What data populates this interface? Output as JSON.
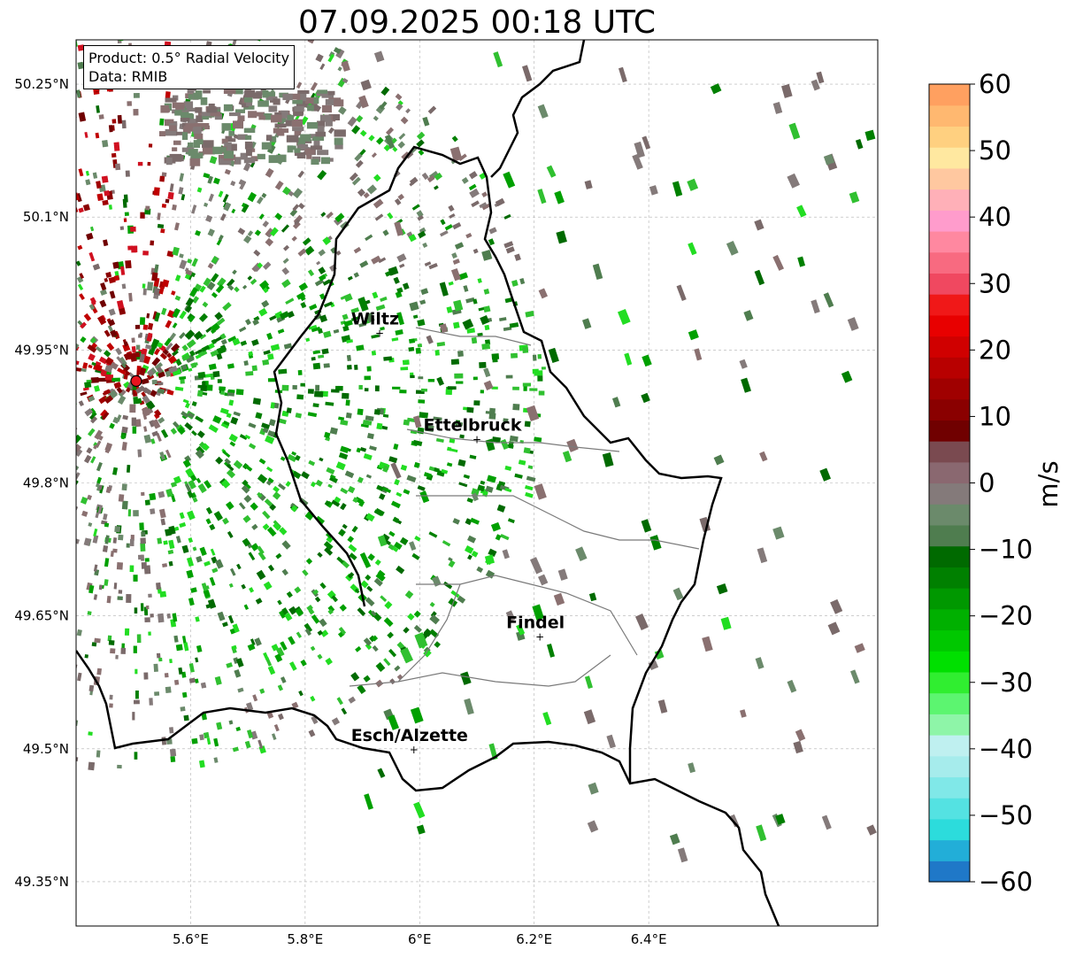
{
  "title": "07.09.2025 00:18 UTC",
  "info_box": {
    "product": "Product: 0.5° Radial Velocity",
    "data_source": "Data: RMIB"
  },
  "map": {
    "lon_range": [
      5.4,
      6.8
    ],
    "lat_range": [
      49.3,
      50.3
    ],
    "lat_ticks": [
      {
        "value": 49.35,
        "label": "49.35°N"
      },
      {
        "value": 49.5,
        "label": "49.5°N"
      },
      {
        "value": 49.65,
        "label": "49.65°N"
      },
      {
        "value": 49.8,
        "label": "49.8°N"
      },
      {
        "value": 49.95,
        "label": "49.95°N"
      },
      {
        "value": 50.1,
        "label": "50.1°N"
      },
      {
        "value": 50.25,
        "label": "50.25°N"
      }
    ],
    "lon_ticks": [
      {
        "value": 5.6,
        "label": "5.6°E"
      },
      {
        "value": 5.8,
        "label": "5.8°E"
      },
      {
        "value": 6.0,
        "label": "6°E"
      },
      {
        "value": 6.2,
        "label": "6.2°E"
      },
      {
        "value": 6.4,
        "label": "6.4°E"
      }
    ],
    "cities": [
      {
        "name": "Wiltz",
        "lon": 5.93,
        "lat": 49.97
      },
      {
        "name": "Ettelbruck",
        "lon": 6.1,
        "lat": 49.85
      },
      {
        "name": "Findel",
        "lon": 6.21,
        "lat": 49.627
      },
      {
        "name": "Esch/Alzette",
        "lon": 5.99,
        "lat": 49.5
      }
    ],
    "radar_site": {
      "lon": 5.505,
      "lat": 49.915,
      "color": "#e8141e"
    },
    "grid": true
  },
  "colorbar": {
    "label": "m/s",
    "min": -60,
    "max": 60,
    "ticks": [
      "60",
      "50",
      "40",
      "30",
      "20",
      "10",
      "0",
      "−10",
      "−20",
      "−30",
      "−40",
      "−50",
      "−60"
    ],
    "colors_bottom_to_top": [
      "#1f78c8",
      "#22aed8",
      "#2cdcdc",
      "#54e2e2",
      "#80e8e8",
      "#a6ecec",
      "#bff0f0",
      "#8ef5a8",
      "#5cf570",
      "#30ee30",
      "#00e000",
      "#00c800",
      "#00b000",
      "#009800",
      "#008000",
      "#006a00",
      "#4f7d4f",
      "#6b8a6b",
      "#847a7a",
      "#8a6870",
      "#7a4a50",
      "#700000",
      "#8a0000",
      "#a00000",
      "#b80000",
      "#d00000",
      "#e80000",
      "#f01818",
      "#f04860",
      "#f86a80",
      "#ff88a0",
      "#ff9ccc",
      "#ffb0b8",
      "#ffc8a0",
      "#ffe8a0",
      "#ffd080",
      "#ffb870",
      "#ffa060"
    ]
  }
}
